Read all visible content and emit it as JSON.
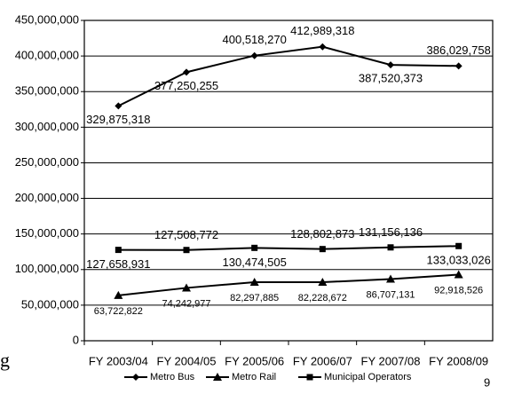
{
  "chart_data": {
    "type": "line",
    "categories": [
      "FY 2003/04",
      "FY 2004/05",
      "FY 2005/06",
      "FY 2006/07",
      "FY 2007/08",
      "FY 2008/09"
    ],
    "series": [
      {
        "name": "Metro Bus",
        "color": "#000000",
        "marker": "diamond",
        "values": [
          329875318,
          377250255,
          400518270,
          412989318,
          387520373,
          386029758
        ],
        "value_labels": [
          "329,875,318",
          "377,250,255",
          "400,518,270",
          "412,989,318",
          "387,520,373",
          "386,029,758"
        ]
      },
      {
        "name": "Metro Rail",
        "color": "#000000",
        "marker": "triangle",
        "values": [
          63722822,
          74242977,
          82297885,
          82228672,
          86707131,
          92918526
        ],
        "value_labels": [
          "63,722,822",
          "74,242,977",
          "82,297,885",
          "82,228,672",
          "86,707,131",
          "92,918,526"
        ]
      },
      {
        "name": "Municipal Operators",
        "color": "#000000",
        "marker": "square",
        "values": [
          127658931,
          127508772,
          130474505,
          128802873,
          131156136,
          133033026
        ],
        "value_labels": [
          "127,658,931",
          "127,508,772",
          "130,474,505",
          "128,802,873",
          "131,156,136",
          "133,033,026"
        ]
      }
    ],
    "ylim": [
      0,
      450000000
    ],
    "yticks": [
      0,
      {
        "value": 50000000,
        "label": "50,000,000"
      },
      {
        "value": 100000000,
        "label": "100,000,000"
      },
      {
        "value": 150000000,
        "label": "150,000,000"
      },
      {
        "value": 200000000,
        "label": "200,000,000"
      },
      {
        "value": 250000000,
        "label": "250,000,000"
      },
      {
        "value": 300000000,
        "label": "300,000,000"
      },
      {
        "value": 350000000,
        "label": "350,000,000"
      },
      {
        "value": 400000000,
        "label": "400,000,000"
      },
      {
        "value": 450000000,
        "label": "450,000,000"
      }
    ],
    "grid": true,
    "legend": "bottom"
  },
  "page_number": "9",
  "margin_fragment": "g"
}
